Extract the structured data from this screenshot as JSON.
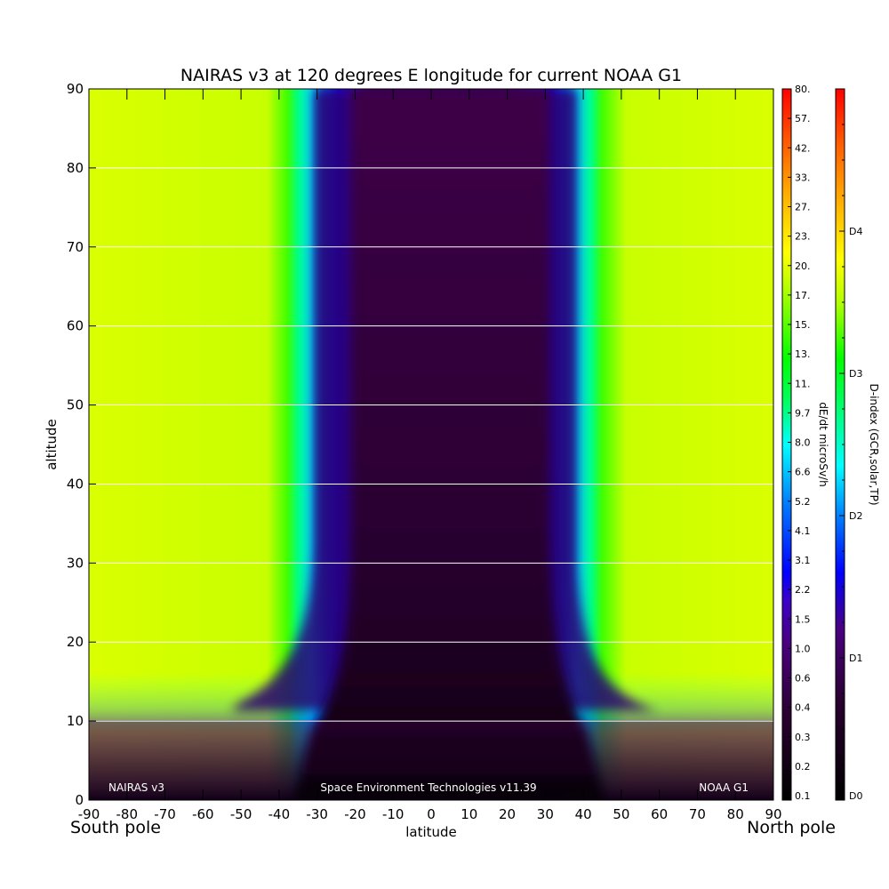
{
  "chart_data": {
    "type": "heatmap",
    "title": "NAIRAS v3 at 120 degrees E longitude for current NOAA G1",
    "xlabel": "latitude",
    "ylabel": "altitude",
    "xlim": [
      -90,
      90
    ],
    "ylim": [
      0,
      90
    ],
    "x_ticks": [
      "-90",
      "-80",
      "-70",
      "-60",
      "-50",
      "-40",
      "-30",
      "-20",
      "-10",
      "0",
      "10",
      "20",
      "30",
      "40",
      "50",
      "60",
      "70",
      "80",
      "90"
    ],
    "y_ticks": [
      "0",
      "10",
      "20",
      "30",
      "40",
      "50",
      "60",
      "70",
      "80",
      "90"
    ],
    "grid_y": true,
    "x_end_labels": {
      "left": "South pole",
      "right": "North pole"
    },
    "footer": {
      "left": "NAIRAS v3",
      "center": "Space Environment Technologies v11.39",
      "right": "NOAA G1"
    },
    "colorbar_dose": {
      "label": "dE/dt microSv/h",
      "ticks": [
        "0.1",
        "0.2",
        "0.3",
        "0.4",
        "0.6",
        "1.0",
        "1.5",
        "2.2",
        "3.1",
        "4.1",
        "5.2",
        "6.6",
        "8.0",
        "9.7",
        "11.",
        "13.",
        "15.",
        "17.",
        "20.",
        "23.",
        "27.",
        "33.",
        "42.",
        "57.",
        "80."
      ]
    },
    "colorbar_dindex": {
      "label": "D-index (GCR,solar,TP)",
      "ticks": [
        "D0",
        "D1",
        "D2",
        "D3",
        "D4"
      ]
    },
    "colors": {
      "black": "#000000",
      "dark_purple": "#3c0046",
      "purple": "#5a00a0",
      "blue": "#0000ff",
      "cyan": "#00ffff",
      "green": "#00ff00",
      "yellow_green": "#dcff00",
      "yellow": "#ffff00",
      "orange": "#ff8000",
      "red": "#ff0000"
    }
  }
}
